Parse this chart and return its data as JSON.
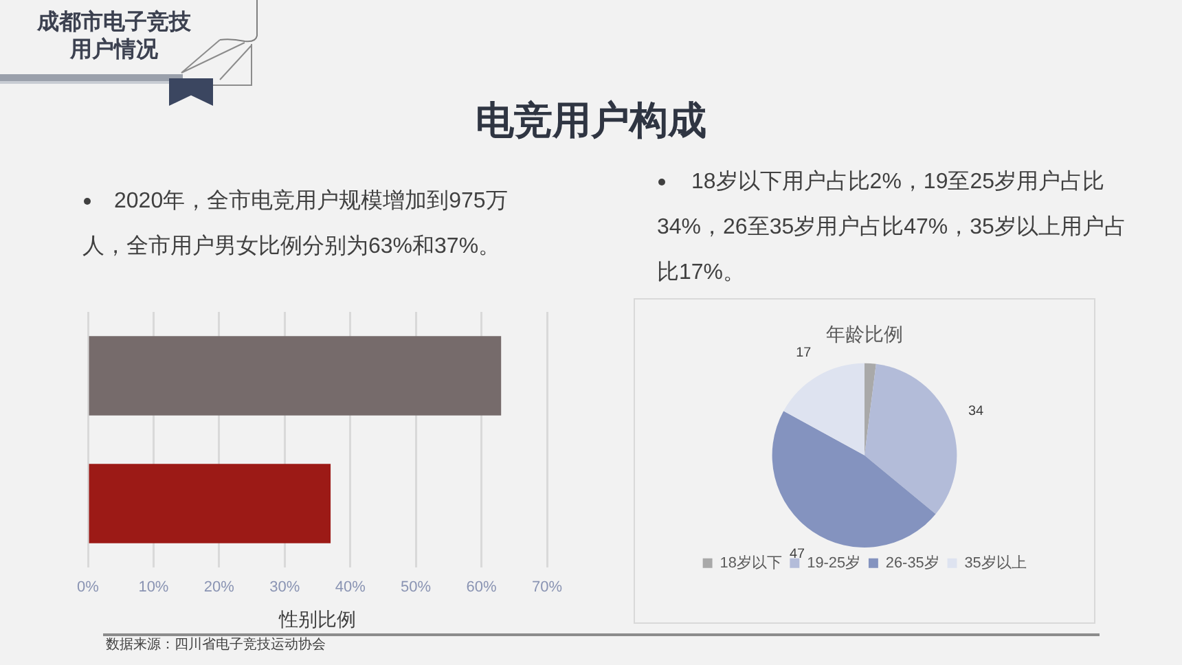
{
  "chart_data": [
    {
      "type": "other",
      "title": "电竞用户构成",
      "annotations": [
        "成都市电子竞技用户情况"
      ]
    },
    {
      "type": "bar",
      "orientation": "horizontal",
      "categories": [
        null,
        null
      ],
      "values": [
        63,
        37
      ],
      "colors": [
        "#766b6b",
        "#9c1a16"
      ],
      "xlabel": "性别比例",
      "xlim": [
        0,
        70
      ],
      "xticks": [
        {
          "value": 0,
          "label": "0%"
        },
        {
          "value": 10,
          "label": "10%"
        },
        {
          "value": 20,
          "label": "20%"
        },
        {
          "value": 30,
          "label": "30%"
        },
        {
          "value": 40,
          "label": "40%"
        },
        {
          "value": 50,
          "label": "50%"
        },
        {
          "value": 60,
          "label": "60%"
        },
        {
          "value": 70,
          "label": "70%"
        }
      ],
      "grid": "x",
      "tick_labels": "x",
      "annotations": [
        "2020年，全市电竞用户规模增加到975万人，全市用户男女比例分别为63%和37%。",
        "数据来源：四川省电子竞技运动协会"
      ]
    },
    {
      "type": "pie",
      "title": "年龄比例",
      "categories": [
        "18岁以下",
        "19-25岁",
        "26-35岁",
        "35岁以上"
      ],
      "values": [
        2,
        34,
        47,
        17
      ],
      "colors": [
        "#a9a9a9",
        "#b3bcd9",
        "#8493bf",
        "#dee3f0"
      ],
      "value_labels": [
        null,
        "34",
        "47",
        "17"
      ],
      "legend": "bottom",
      "annotations": [
        "18岁以下用户占比2%，19至25岁用户占比34%，26至35岁用户占比47%，35岁以上用户占比17%。"
      ]
    }
  ]
}
